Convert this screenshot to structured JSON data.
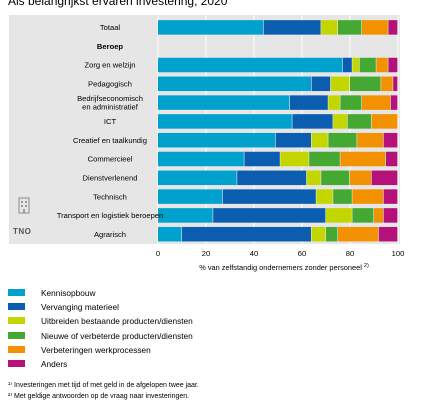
{
  "title": "Als belangrijkst ervaren investering, 2020",
  "tno_label": "TNO",
  "chart_data": {
    "type": "bar",
    "orientation": "horizontal",
    "stacked": true,
    "categories": [
      "Totaal",
      "Beroep",
      "Zorg en welzijn",
      "Pedagogisch",
      "Bedrijfseconomisch en administratief",
      "ICT",
      "Creatief en taalkundig",
      "Commercieel",
      "Dienstverlenend",
      "Technisch",
      "Transport en logistiek beroepen",
      "Agrarisch"
    ],
    "category_lines": [
      [
        "Totaal"
      ],
      [
        "Beroep"
      ],
      [
        "Zorg en welzijn"
      ],
      [
        "Pedagogisch"
      ],
      [
        "Bedrijfseconomisch",
        "en administratief"
      ],
      [
        "ICT"
      ],
      [
        "Creatief en taalkundig"
      ],
      [
        "Commercieel"
      ],
      [
        "Dienstverlenend"
      ],
      [
        "Technisch"
      ],
      [
        "Transport en logistiek beroepen"
      ],
      [
        "Agrarisch"
      ]
    ],
    "heading_index": 1,
    "series": [
      {
        "name": "Kennisopbouw",
        "color": "#00a1cd",
        "values": [
          44,
          null,
          77,
          64,
          55,
          56,
          49,
          36,
          33,
          27,
          23,
          10
        ]
      },
      {
        "name": "Vervanging materieel",
        "color": "#0b5eaf",
        "values": [
          24,
          null,
          4,
          8,
          16,
          17,
          15,
          15,
          29,
          39,
          47,
          54
        ]
      },
      {
        "name": "Uitbreiden bestaande producten/diensten",
        "color": "#c3d600",
        "values": [
          7,
          null,
          3,
          8,
          5,
          6,
          7,
          12,
          6,
          7,
          11,
          6
        ]
      },
      {
        "name": "Nieuwe of verbeterde producten/diensten",
        "color": "#44a832",
        "values": [
          10,
          null,
          7,
          13,
          9,
          10,
          12,
          13,
          12,
          8,
          9,
          5
        ]
      },
      {
        "name": "Verbeteringen werkprocessen",
        "color": "#f29200",
        "values": [
          11,
          null,
          5,
          5,
          12,
          11,
          11,
          19,
          9,
          13,
          4,
          17
        ]
      },
      {
        "name": "Anders",
        "color": "#b4117a",
        "values": [
          4,
          null,
          4,
          2,
          3,
          0,
          6,
          5,
          11,
          6,
          6,
          8
        ]
      }
    ],
    "xlabel": "% van zelfstandig ondernemers zonder personeel",
    "xlabel_sup": "2)",
    "xlim": [
      0,
      100
    ],
    "xticks": [
      0,
      20,
      40,
      60,
      80,
      100
    ],
    "grid": true,
    "legend_position": "below"
  },
  "footnotes": [
    "¹⁾ Investeringen met tijd of met geld in de afgelopen twee jaar.",
    "²⁾ Met geldige antwoorden op de vraag naar investeringen."
  ]
}
